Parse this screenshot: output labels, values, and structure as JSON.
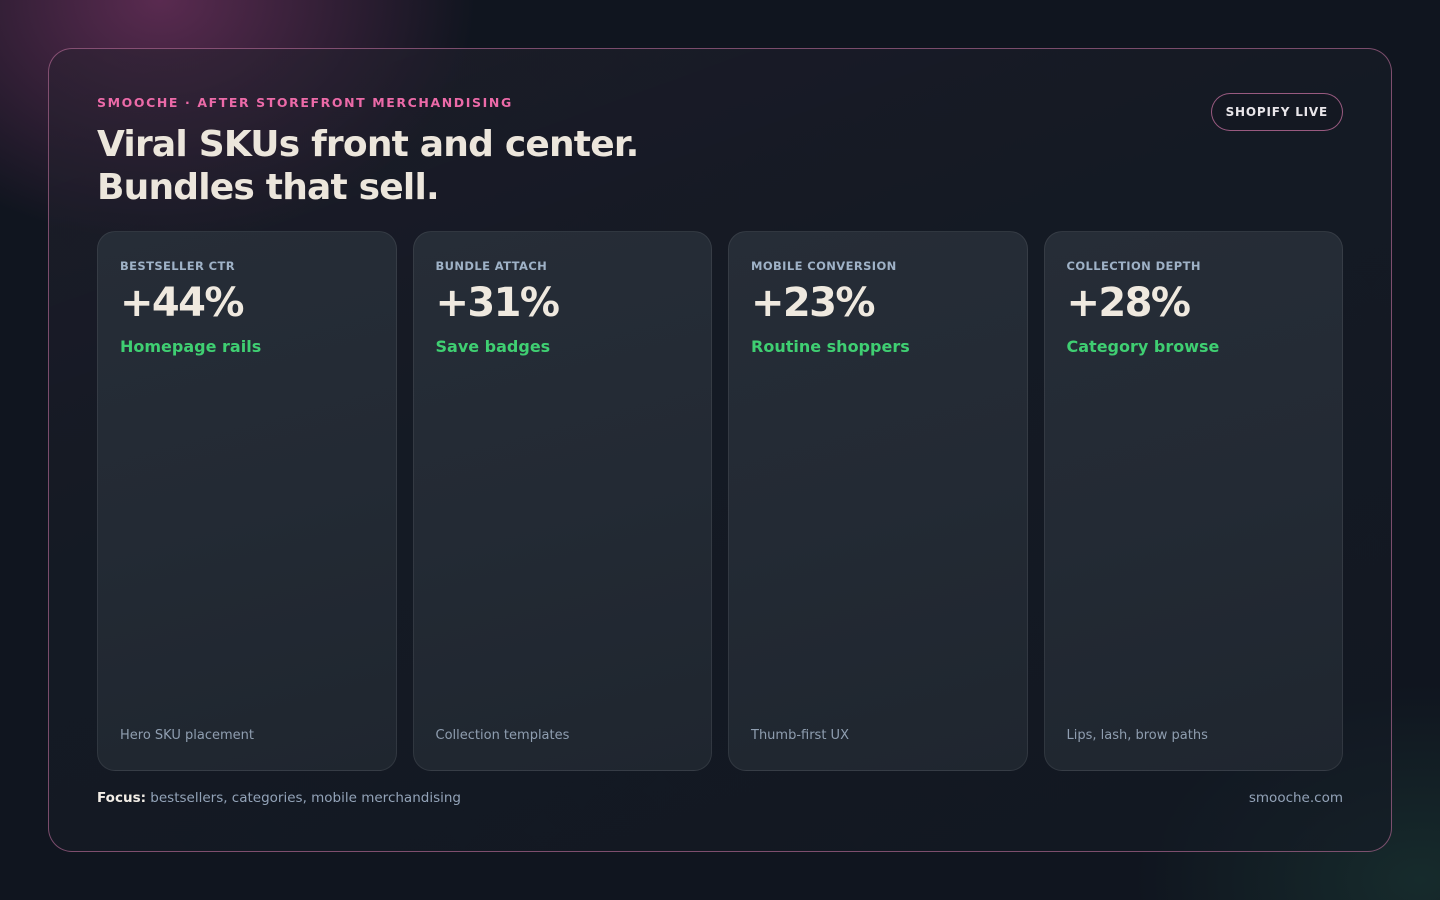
{
  "header": {
    "eyebrow": "SMOOCHE · AFTER STOREFRONT MERCHANDISING",
    "headline_line1": "Viral SKUs front and center.",
    "headline_line2": "Bundles that sell.",
    "badge": "SHOPIFY LIVE"
  },
  "metrics": [
    {
      "label": "BESTSELLER CTR",
      "value": "+44%",
      "subtitle": "Homepage rails",
      "footnote": "Hero SKU placement"
    },
    {
      "label": "BUNDLE ATTACH",
      "value": "+31%",
      "subtitle": "Save badges",
      "footnote": "Collection templates"
    },
    {
      "label": "MOBILE CONVERSION",
      "value": "+23%",
      "subtitle": "Routine shoppers",
      "footnote": "Thumb-first UX"
    },
    {
      "label": "COLLECTION DEPTH",
      "value": "+28%",
      "subtitle": "Category browse",
      "footnote": "Lips, lash, brow paths"
    }
  ],
  "footer": {
    "focus_label": "Focus:",
    "focus_text": " bestsellers, categories, mobile merchandising",
    "site": "smooche.com"
  },
  "colors": {
    "accent_pink": "#ec6aa8",
    "accent_green": "#3fcf72",
    "background": "#10151f"
  }
}
